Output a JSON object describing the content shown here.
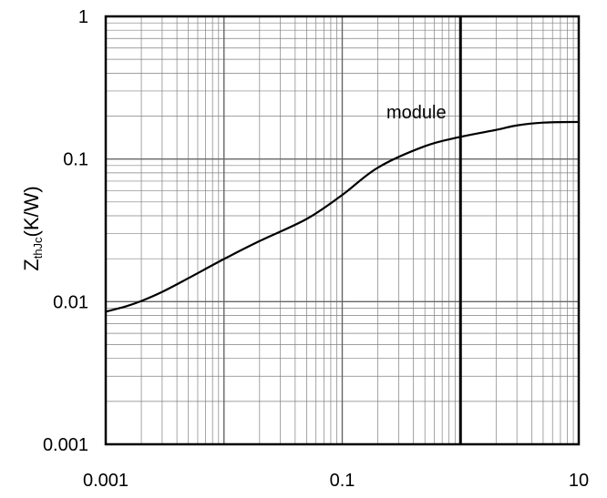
{
  "chart_data": {
    "type": "line",
    "x_scale": "log",
    "y_scale": "log",
    "xlim": [
      0.001,
      10
    ],
    "ylim": [
      0.001,
      1
    ],
    "x_tick_labels": [
      "0.001",
      "0.1",
      "10"
    ],
    "y_tick_labels": [
      "1",
      "0.1",
      "0.01",
      "0.001"
    ],
    "ylabel_main": "Z",
    "ylabel_sub": "thJc",
    "ylabel_unit": "(K/W)",
    "annotation": "module",
    "marker_x": 1,
    "grid": true,
    "line_color": "#000000",
    "grid_color": "#808080",
    "series": [
      {
        "x": [
          0.001,
          0.0015,
          0.002,
          0.003,
          0.005,
          0.01,
          0.02,
          0.05,
          0.1,
          0.2,
          0.5,
          1,
          2,
          3,
          5,
          10
        ],
        "y": [
          0.0085,
          0.0093,
          0.0101,
          0.0117,
          0.0146,
          0.0199,
          0.0266,
          0.038,
          0.056,
          0.087,
          0.123,
          0.143,
          0.16,
          0.172,
          0.18,
          0.182
        ]
      }
    ]
  }
}
